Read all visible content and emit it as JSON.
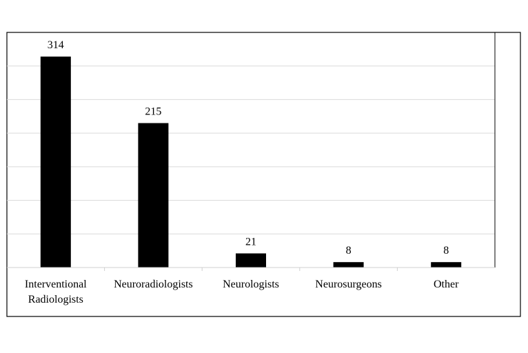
{
  "chart_data": {
    "type": "bar",
    "categories": [
      [
        "Interventional",
        "Radiologists"
      ],
      [
        "Neuroradiologists"
      ],
      [
        "Neurologists"
      ],
      [
        "Neurosurgeons"
      ],
      [
        "Other"
      ]
    ],
    "values": [
      314,
      215,
      21,
      8,
      8
    ],
    "value_labels": [
      "314",
      "215",
      "21",
      "8",
      "8"
    ],
    "title": "",
    "xlabel": "",
    "ylabel": "",
    "ylim": [
      0,
      350
    ],
    "grid": true,
    "legend": "none",
    "bar_color": "#000000",
    "grid_color": "#d9d9d9"
  }
}
